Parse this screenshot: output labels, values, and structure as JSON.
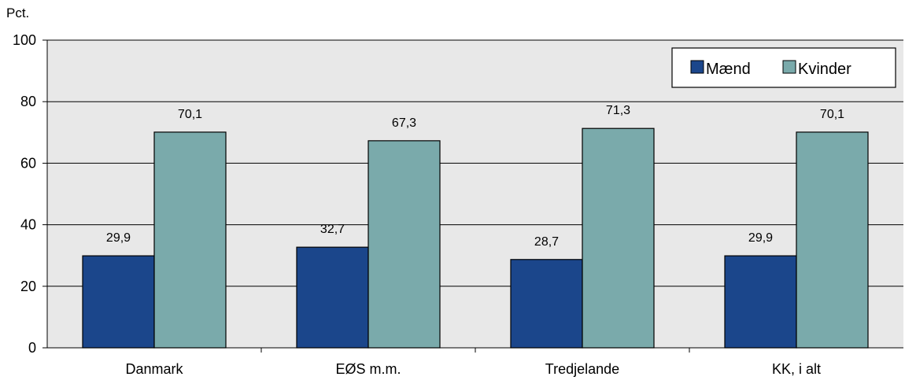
{
  "chart_data": {
    "type": "bar",
    "ylabel": "Pct.",
    "ylim": [
      0,
      100
    ],
    "yticks": [
      0,
      20,
      40,
      60,
      80,
      100
    ],
    "categories": [
      "Danmark",
      "EØS m.m.",
      "Tredjelande",
      "KK, i alt"
    ],
    "series": [
      {
        "name": "Mænd",
        "values": [
          29.9,
          32.7,
          28.7,
          29.9
        ],
        "labels": [
          "29,9",
          "32,7",
          "28,7",
          "29,9"
        ],
        "color": "#1b468b"
      },
      {
        "name": "Kvinder",
        "values": [
          70.1,
          67.3,
          71.3,
          70.1
        ],
        "labels": [
          "70,1",
          "67,3",
          "71,3",
          "70,1"
        ],
        "color": "#7aaaab"
      }
    ],
    "grid": true,
    "legend_position": "top-right",
    "plot_background": "#e8e8e8"
  }
}
